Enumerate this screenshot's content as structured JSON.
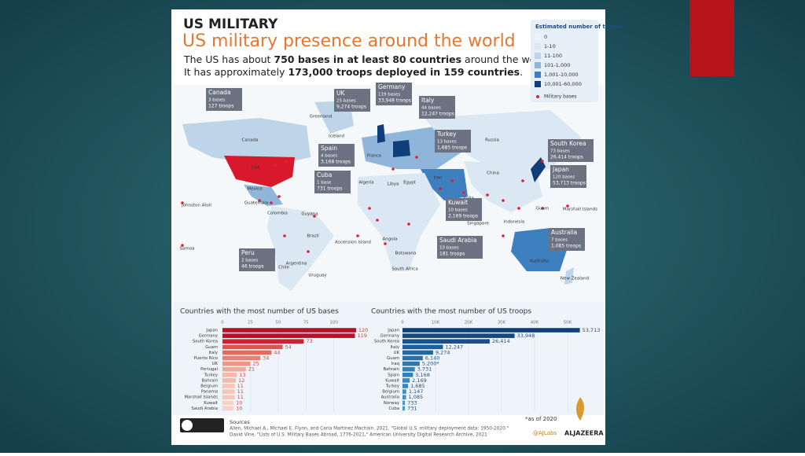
{
  "header": {
    "kicker": "US MILITARY",
    "title": "US military presence around the world",
    "line1": [
      "The US has about ",
      "750 bases in at least 80 countries",
      " around the world."
    ],
    "line2": [
      "It has approximately ",
      "173,000 troops deployed in 159 countries",
      "."
    ]
  },
  "legend": {
    "title": "Estimated number of troops",
    "items": [
      "0",
      "1-10",
      "11-100",
      "101-1,000",
      "1,001-10,000",
      "10,001-60,000"
    ],
    "colors": [
      "#eef3f8",
      "#dbe7f2",
      "#bdd4e9",
      "#8fb5da",
      "#3e7fbf",
      "#0f3e78"
    ],
    "bases": "Military bases"
  },
  "callouts": [
    {
      "name": "Canada",
      "bases": "3 bases",
      "troops": "127 troops"
    },
    {
      "name": "UK",
      "bases": "25 bases",
      "troops": "9,274 troops"
    },
    {
      "name": "Germany",
      "bases": "119 bases",
      "troops": "33,948 troops"
    },
    {
      "name": "Italy",
      "bases": "44 bases",
      "troops": "12,247 troops"
    },
    {
      "name": "Spain",
      "bases": "4 bases",
      "troops": "3,168 troops"
    },
    {
      "name": "Turkey",
      "bases": "13 bases",
      "troops": "1,685 troops"
    },
    {
      "name": "Cuba",
      "bases": "1 base",
      "troops": "731 troops"
    },
    {
      "name": "South Korea",
      "bases": "73 bases",
      "troops": "26,414 troops"
    },
    {
      "name": "Japan",
      "bases": "120 bases",
      "troops": "53,713 troops"
    },
    {
      "name": "Kuwait",
      "bases": "10 bases",
      "troops": "2,169 troops"
    },
    {
      "name": "Saudi Arabia",
      "bases": "10 bases",
      "troops": "181 troops"
    },
    {
      "name": "Australia",
      "bases": "7 bases",
      "troops": "1,085 troops"
    },
    {
      "name": "Peru",
      "bases": "2 bases",
      "troops": "46 troops"
    }
  ],
  "map_labels": [
    "Canada",
    "USA",
    "Greenland",
    "Iceland",
    "Russia",
    "China",
    "Mexico",
    "Brazil",
    "Chile",
    "Argentina",
    "Uruguay",
    "Australia",
    "New Zealand",
    "Algeria",
    "Libya",
    "Egypt",
    "Angola",
    "India",
    "Indonesia",
    "Johnston Atoll",
    "Samoa",
    "Guam",
    "Marshall Islands",
    "South Africa",
    "Guatemala",
    "Colombia",
    "Guyana",
    "Ascension Island",
    "Botswana",
    "Singapore",
    "Iran",
    "France"
  ],
  "chart_data": [
    {
      "type": "bar",
      "title": "Countries with the most number of US bases",
      "categories": [
        "Japan",
        "Germany",
        "South Korea",
        "Guam",
        "Italy",
        "Puerto Rico",
        "UK",
        "Portugal",
        "Turkey",
        "Bahrain",
        "Belgium",
        "Panama",
        "Marshall Islands",
        "Kuwait",
        "Saudi Arabia"
      ],
      "values": [
        120,
        119,
        73,
        54,
        44,
        34,
        25,
        21,
        13,
        12,
        11,
        11,
        11,
        10,
        10
      ],
      "colors": [
        "#b3122b",
        "#b3122b",
        "#cc2334",
        "#e0534f",
        "#e46a5f",
        "#e97f70",
        "#ee9584",
        "#f2a898",
        "#f5b9aa",
        "#f5b9aa",
        "#f7c6b8",
        "#f7c6b8",
        "#f7c6b8",
        "#f9d2c6",
        "#f9d2c6"
      ],
      "xlim": [
        0,
        125
      ],
      "xticks": [
        0,
        25,
        50,
        75,
        100
      ]
    },
    {
      "type": "bar",
      "title": "Countries with the most number of US troops",
      "categories": [
        "Japan",
        "Germany",
        "South Korea",
        "Italy",
        "UK",
        "Guam",
        "Iraq",
        "Bahrain",
        "Spain",
        "Kuwait",
        "Turkey",
        "Belgium",
        "Australia",
        "Norway",
        "Cuba"
      ],
      "values": [
        53713,
        33948,
        26414,
        12247,
        9274,
        6140,
        5200,
        3731,
        3168,
        2169,
        1685,
        1147,
        1085,
        733,
        731
      ],
      "value_labels": [
        "53,713",
        "33,948",
        "26,414",
        "12,247",
        "9,274",
        "6,140",
        "5,200*",
        "3,731",
        "3,168",
        "2,169",
        "1,685",
        "1,147",
        "1,085",
        "733",
        "731"
      ],
      "colors": [
        "#0f3e78",
        "#14477f",
        "#1a5088",
        "#1f5f99",
        "#2567a1",
        "#2a6fa8",
        "#2f77ae",
        "#3480b4",
        "#3480b4",
        "#3a88ba",
        "#3a88ba",
        "#4290c0",
        "#4290c0",
        "#4a98c5",
        "#4a98c5"
      ],
      "xlim": [
        0,
        55000
      ],
      "xticks": [
        0,
        {
          "value": 10000,
          "label": "10K"
        },
        {
          "value": 20000,
          "label": "20K"
        },
        {
          "value": 30000,
          "label": "30K"
        },
        {
          "value": 40000,
          "label": "40K"
        },
        {
          "value": 50000,
          "label": "50K"
        }
      ]
    }
  ],
  "footnote": "*as of 2020",
  "sources": {
    "label": "Sources",
    "line1": "Allen, Michael A., Michael E. Flynn, and Carla Martinez Machain. 2021. \"Global U.S. military deployment data: 1950-2020.\"",
    "line2": "David Vine, \"Lists of U.S. Military Bases Abroad, 1776-2021,\" American University Digital Research Archive, 2021"
  },
  "credit": "@AJLabs",
  "brand": "ALJAZEERA"
}
